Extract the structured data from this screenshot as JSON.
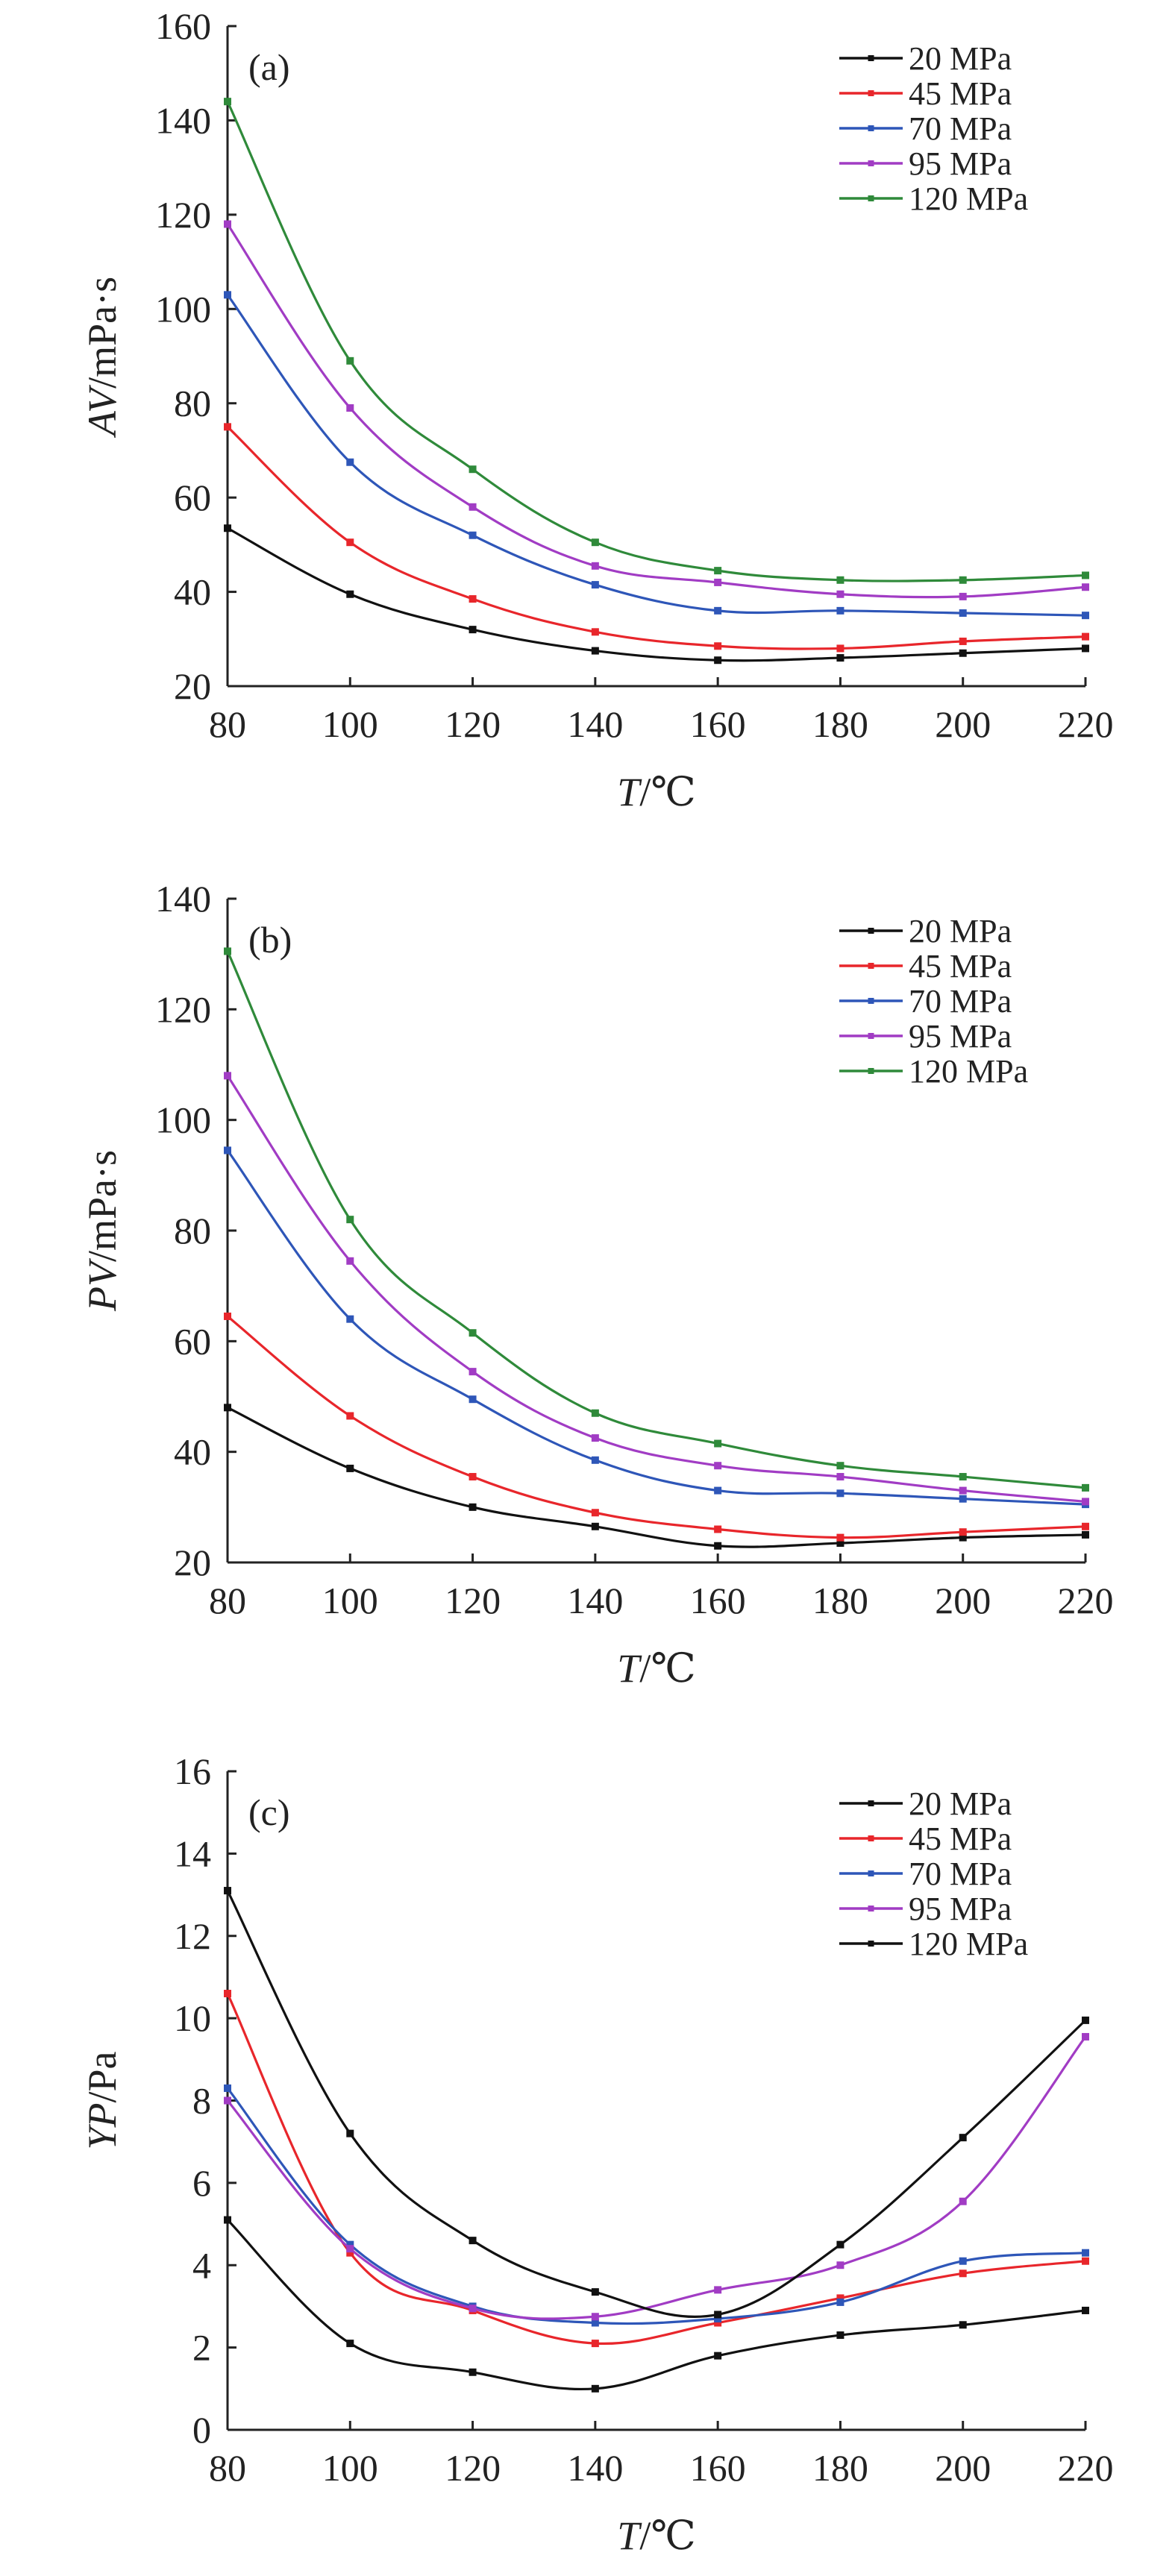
{
  "chart_data": [
    {
      "type": "line",
      "panel": "(a)",
      "xlabel": {
        "italic": "T",
        "rest": "/℃"
      },
      "ylabel": {
        "italic": "AV",
        "rest": "/mPa·s"
      },
      "xlim": [
        80,
        220
      ],
      "ylim": [
        20,
        160
      ],
      "xticks": [
        80,
        100,
        120,
        140,
        160,
        180,
        200,
        220
      ],
      "yticks": [
        20,
        40,
        60,
        80,
        100,
        120,
        140,
        160
      ],
      "grid": false,
      "legend_position": "top-right",
      "x": [
        80,
        100,
        120,
        140,
        160,
        180,
        200,
        220
      ],
      "series": [
        {
          "name": "20 MPa",
          "color": "#111111",
          "values": [
            53.5,
            39.5,
            32,
            27.5,
            25.5,
            26,
            27,
            28
          ]
        },
        {
          "name": "45 MPa",
          "color": "#e8262b",
          "values": [
            75,
            50.5,
            38.5,
            31.5,
            28.5,
            28,
            29.5,
            30.5
          ]
        },
        {
          "name": "70 MPa",
          "color": "#2e56b8",
          "values": [
            103,
            67.5,
            52,
            41.5,
            36,
            36,
            35.5,
            35
          ]
        },
        {
          "name": "95 MPa",
          "color": "#a13cc4",
          "values": [
            118,
            79,
            58,
            45.5,
            42,
            39.5,
            39,
            41
          ]
        },
        {
          "name": "120 MPa",
          "color": "#2f8a3a",
          "values": [
            144,
            89,
            66,
            50.5,
            44.5,
            42.5,
            42.5,
            43.5
          ]
        }
      ]
    },
    {
      "type": "line",
      "panel": "(b)",
      "xlabel": {
        "italic": "T",
        "rest": "/℃"
      },
      "ylabel": {
        "italic": "PV",
        "rest": "/mPa·s"
      },
      "xlim": [
        80,
        220
      ],
      "ylim": [
        20,
        140
      ],
      "xticks": [
        80,
        100,
        120,
        140,
        160,
        180,
        200,
        220
      ],
      "yticks": [
        20,
        40,
        60,
        80,
        100,
        120,
        140
      ],
      "grid": false,
      "legend_position": "top-right",
      "x": [
        80,
        100,
        120,
        140,
        160,
        180,
        200,
        220
      ],
      "series": [
        {
          "name": "20 MPa",
          "color": "#111111",
          "values": [
            48,
            37,
            30,
            26.5,
            23,
            23.5,
            24.5,
            25
          ]
        },
        {
          "name": "45 MPa",
          "color": "#e8262b",
          "values": [
            64.5,
            46.5,
            35.5,
            29,
            26,
            24.5,
            25.5,
            26.5
          ]
        },
        {
          "name": "70 MPa",
          "color": "#2e56b8",
          "values": [
            94.5,
            64,
            49.5,
            38.5,
            33,
            32.5,
            31.5,
            30.5
          ]
        },
        {
          "name": "95 MPa",
          "color": "#a13cc4",
          "values": [
            108,
            74.5,
            54.5,
            42.5,
            37.5,
            35.5,
            33,
            31
          ]
        },
        {
          "name": "120 MPa",
          "color": "#2f8a3a",
          "values": [
            130.5,
            82,
            61.5,
            47,
            41.5,
            37.5,
            35.5,
            33.5
          ]
        }
      ]
    },
    {
      "type": "line",
      "panel": "(c)",
      "xlabel": {
        "italic": "T",
        "rest": "/℃"
      },
      "ylabel": {
        "italic": "YP",
        "rest": "/Pa"
      },
      "xlim": [
        80,
        220
      ],
      "ylim": [
        0,
        16
      ],
      "xticks": [
        80,
        100,
        120,
        140,
        160,
        180,
        200,
        220
      ],
      "yticks": [
        0,
        2,
        4,
        6,
        8,
        10,
        12,
        14,
        16
      ],
      "grid": false,
      "legend_position": "top-right",
      "x": [
        80,
        100,
        120,
        140,
        160,
        180,
        200,
        220
      ],
      "series": [
        {
          "name": "20 MPa",
          "color": "#111111",
          "values": [
            5.1,
            2.1,
            1.4,
            1.0,
            1.8,
            2.3,
            2.55,
            2.9
          ]
        },
        {
          "name": "45 MPa",
          "color": "#e8262b",
          "values": [
            10.6,
            4.3,
            2.9,
            2.1,
            2.6,
            3.2,
            3.8,
            4.1
          ]
        },
        {
          "name": "70 MPa",
          "color": "#2e56b8",
          "values": [
            8.3,
            4.5,
            3.0,
            2.6,
            2.7,
            3.1,
            4.1,
            4.3
          ]
        },
        {
          "name": "95 MPa",
          "color": "#a13cc4",
          "values": [
            8.0,
            4.4,
            2.95,
            2.75,
            3.4,
            4.0,
            5.55,
            9.55
          ]
        },
        {
          "name": "120 MPa",
          "color": "#111111",
          "values": [
            13.1,
            7.2,
            4.6,
            3.35,
            2.8,
            4.5,
            7.1,
            9.95
          ]
        }
      ]
    }
  ]
}
